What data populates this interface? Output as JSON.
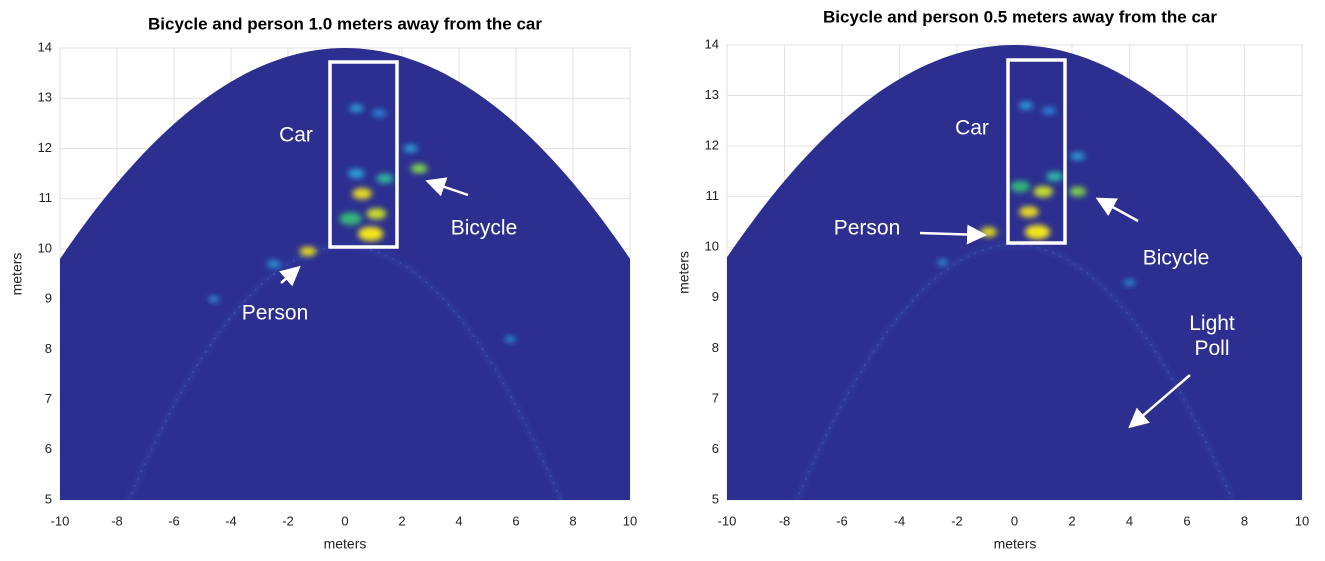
{
  "chart_data": [
    {
      "type": "heatmap",
      "title": "Bicycle and person 1.0 meters away from the car",
      "x_label": "meters",
      "y_label": "meters",
      "xlim": [
        -10,
        10
      ],
      "ylim": [
        5,
        14
      ],
      "xticks": [
        -10,
        -8,
        -6,
        -4,
        -2,
        0,
        2,
        4,
        6,
        8,
        10
      ],
      "yticks": [
        5,
        6,
        7,
        8,
        9,
        10,
        11,
        12,
        13,
        14
      ],
      "grid": true,
      "annotations": [
        "Car",
        "Bicycle",
        "Person"
      ]
    },
    {
      "type": "heatmap",
      "title": "Bicycle and person 0.5 meters away from the car",
      "x_label": "meters",
      "y_label": "meters",
      "xlim": [
        -10,
        10
      ],
      "ylim": [
        5,
        14
      ],
      "xticks": [
        -10,
        -8,
        -6,
        -4,
        -2,
        0,
        2,
        4,
        6,
        8,
        10
      ],
      "yticks": [
        5,
        6,
        7,
        8,
        9,
        10,
        11,
        12,
        13,
        14
      ],
      "grid": true,
      "annotations": [
        "Car",
        "Person",
        "Bicycle",
        "Light Poll"
      ]
    }
  ]
}
